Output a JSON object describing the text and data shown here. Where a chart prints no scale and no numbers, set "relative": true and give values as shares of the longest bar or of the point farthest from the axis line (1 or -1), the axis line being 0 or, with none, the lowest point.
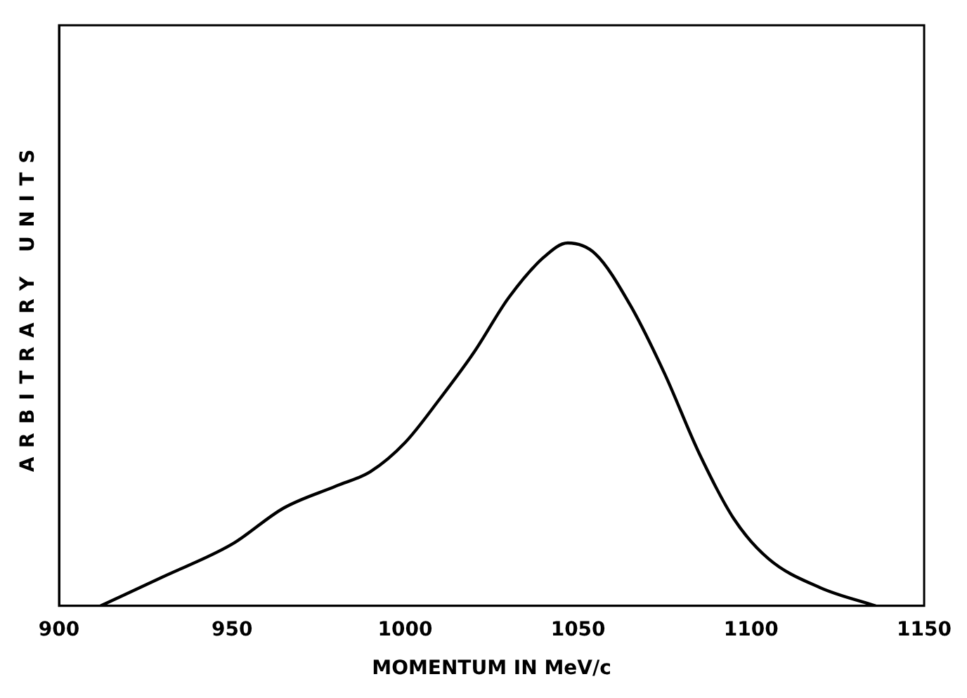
{
  "chart_data": {
    "type": "line",
    "relative": true,
    "xlabel": "MOMENTUM IN MeV/c",
    "ylabel": "ARBITRARY UNITS",
    "xlim": [
      900,
      1150
    ],
    "xticks": [
      900,
      950,
      1000,
      1050,
      1100,
      1150
    ],
    "x": [
      912,
      930,
      950,
      965,
      980,
      990,
      1000,
      1010,
      1020,
      1030,
      1040,
      1047,
      1055,
      1065,
      1075,
      1085,
      1095,
      1105,
      1120,
      1136
    ],
    "series": [
      {
        "color": "#000000",
        "values": [
          0,
          0.08,
          0.17,
          0.27,
          0.33,
          0.37,
          0.45,
          0.57,
          0.7,
          0.85,
          0.96,
          1,
          0.97,
          0.83,
          0.64,
          0.42,
          0.24,
          0.13,
          0.05,
          0
        ]
      }
    ],
    "grid": false,
    "legend": false,
    "marker": "none",
    "line_style": "solid"
  }
}
